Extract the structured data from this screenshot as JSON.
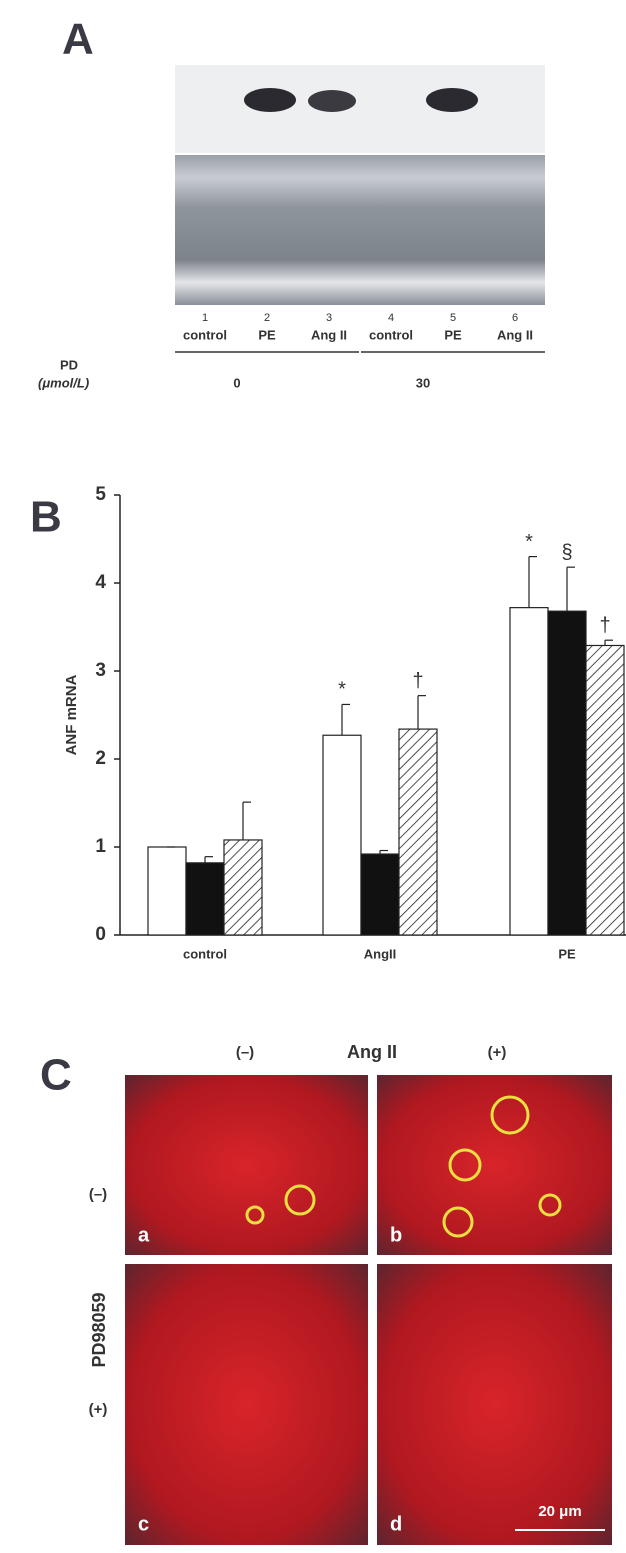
{
  "panel_a": {
    "label": "A",
    "lanes": [
      "1",
      "2",
      "3",
      "4",
      "5",
      "6"
    ],
    "lane_labels": [
      "control",
      "PE",
      "Ang II",
      "control",
      "PE",
      "Ang II"
    ],
    "row_label": "PD",
    "row_unit": "(μmol/L)",
    "doses": [
      "0",
      "30"
    ]
  },
  "chart_data": {
    "type": "bar",
    "panel_label": "B",
    "ylabel": "ANF mRNA",
    "categories": [
      "control",
      "AngII",
      "PE"
    ],
    "series": [
      {
        "color": "#ffffff",
        "values": [
          1.0,
          2.27,
          3.72
        ],
        "errors": [
          0,
          0.35,
          0.58
        ],
        "markers": [
          null,
          "*",
          "*"
        ]
      },
      {
        "color": "#111111",
        "values": [
          0.82,
          0.92,
          3.68
        ],
        "errors": [
          0.07,
          0.04,
          0.5
        ],
        "markers": [
          null,
          null,
          "§"
        ]
      },
      {
        "color": "#ffffff",
        "hatch": true,
        "values": [
          1.08,
          2.34,
          3.29
        ],
        "errors": [
          0.43,
          0.38,
          0.06
        ],
        "markers": [
          null,
          "†",
          "†"
        ]
      }
    ],
    "ylim": [
      0,
      5
    ],
    "yticks": [
      0,
      1,
      2,
      3,
      4,
      5
    ]
  },
  "panel_c": {
    "label": "C",
    "col_title": "Ang II",
    "col_labels": [
      "(–)",
      "(+)"
    ],
    "row_title": "PD98059",
    "row_labels": [
      "(–)",
      "(+)"
    ],
    "image_labels": [
      "a",
      "b",
      "c",
      "d"
    ],
    "scale_bar": "20 μm"
  }
}
